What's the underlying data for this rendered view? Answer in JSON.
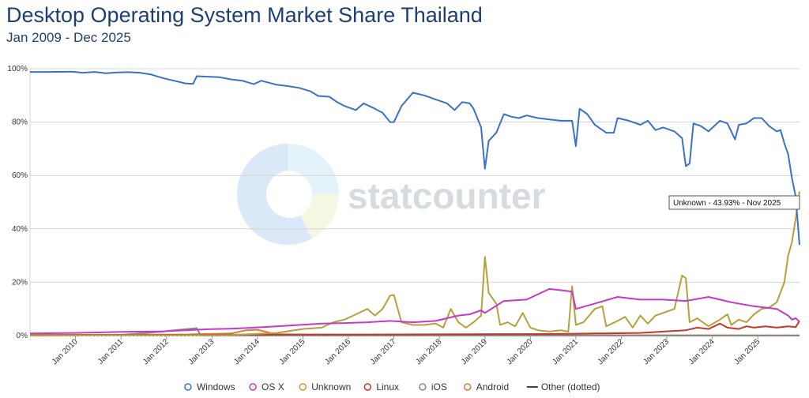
{
  "chart_data": {
    "type": "line",
    "title": "Desktop Operating System Market Share Thailand",
    "subtitle": "Jan 2009 - Dec 2025",
    "ylim": [
      0,
      100
    ],
    "xlim": [
      "2009-01",
      "2025-12"
    ],
    "grid": true,
    "legend_position": "bottom",
    "y_ticks": [
      "0%",
      "20%",
      "40%",
      "60%",
      "80%",
      "100%"
    ],
    "x_ticks": [
      "Jan 2010",
      "Jan 2011",
      "Jan 2012",
      "Jan 2013",
      "Jan 2014",
      "Jan 2015",
      "Jan 2016",
      "Jan 2017",
      "Jan 2018",
      "Jan 2019",
      "Jan 2020",
      "Jan 2021",
      "Jan 2022",
      "Jan 2023",
      "Jan 2024",
      "Jan 2025"
    ],
    "watermark": "statcounter",
    "tooltip": "Unknown - 43.93% - Nov 2025",
    "series": [
      {
        "name": "Windows",
        "color": "#3a72c7",
        "dotted": false,
        "points": [
          [
            "2009-01",
            98.8
          ],
          [
            "2009-06",
            98.8
          ],
          [
            "2009-12",
            98.9
          ],
          [
            "2010-03",
            98.5
          ],
          [
            "2010-06",
            98.8
          ],
          [
            "2010-09",
            98.3
          ],
          [
            "2010-12",
            98.6
          ],
          [
            "2011-03",
            98.7
          ],
          [
            "2011-06",
            98.5
          ],
          [
            "2011-09",
            97.8
          ],
          [
            "2011-12",
            96.5
          ],
          [
            "2012-03",
            95.5
          ],
          [
            "2012-06",
            94.5
          ],
          [
            "2012-08",
            94.3
          ],
          [
            "2012-09",
            97.2
          ],
          [
            "2012-12",
            97.0
          ],
          [
            "2013-03",
            96.8
          ],
          [
            "2013-06",
            96.0
          ],
          [
            "2013-09",
            95.5
          ],
          [
            "2013-12",
            94.2
          ],
          [
            "2014-02",
            95.5
          ],
          [
            "2014-06",
            94.0
          ],
          [
            "2014-09",
            93.5
          ],
          [
            "2014-12",
            92.8
          ],
          [
            "2015-03",
            91.5
          ],
          [
            "2015-05",
            89.8
          ],
          [
            "2015-08",
            89.5
          ],
          [
            "2015-10",
            87.5
          ],
          [
            "2015-12",
            86.0
          ],
          [
            "2016-03",
            84.5
          ],
          [
            "2016-05",
            87.0
          ],
          [
            "2016-08",
            85.0
          ],
          [
            "2016-10",
            83.5
          ],
          [
            "2016-12",
            80.0
          ],
          [
            "2017-01",
            80.0
          ],
          [
            "2017-03",
            86.0
          ],
          [
            "2017-06",
            91.0
          ],
          [
            "2017-09",
            90.0
          ],
          [
            "2017-12",
            88.5
          ],
          [
            "2018-03",
            87.0
          ],
          [
            "2018-05",
            84.5
          ],
          [
            "2018-07",
            87.5
          ],
          [
            "2018-09",
            87.0
          ],
          [
            "2018-10",
            85.0
          ],
          [
            "2018-12",
            78.0
          ],
          [
            "2019-01",
            62.5
          ],
          [
            "2019-02",
            73.0
          ],
          [
            "2019-04",
            76.0
          ],
          [
            "2019-06",
            83.0
          ],
          [
            "2019-08",
            82.0
          ],
          [
            "2019-10",
            81.5
          ],
          [
            "2019-12",
            82.5
          ],
          [
            "2020-03",
            81.5
          ],
          [
            "2020-06",
            81.0
          ],
          [
            "2020-09",
            80.5
          ],
          [
            "2020-11",
            80.5
          ],
          [
            "2020-12",
            80.5
          ],
          [
            "2021-01",
            71.0
          ],
          [
            "2021-02",
            85.0
          ],
          [
            "2021-04",
            83.0
          ],
          [
            "2021-06",
            79.0
          ],
          [
            "2021-09",
            76.0
          ],
          [
            "2021-11",
            76.0
          ],
          [
            "2021-12",
            81.5
          ],
          [
            "2022-03",
            80.5
          ],
          [
            "2022-06",
            79.0
          ],
          [
            "2022-08",
            80.5
          ],
          [
            "2022-10",
            77.0
          ],
          [
            "2022-12",
            78.0
          ],
          [
            "2023-03",
            76.5
          ],
          [
            "2023-05",
            74.0
          ],
          [
            "2023-06",
            63.5
          ],
          [
            "2023-07",
            64.5
          ],
          [
            "2023-08",
            79.5
          ],
          [
            "2023-10",
            78.5
          ],
          [
            "2023-12",
            76.5
          ],
          [
            "2024-03",
            80.5
          ],
          [
            "2024-05",
            79.5
          ],
          [
            "2024-07",
            73.5
          ],
          [
            "2024-08",
            79.0
          ],
          [
            "2024-10",
            79.5
          ],
          [
            "2024-12",
            81.5
          ],
          [
            "2025-02",
            81.5
          ],
          [
            "2025-04",
            78.5
          ],
          [
            "2025-06",
            76.5
          ],
          [
            "2025-07",
            77.0
          ],
          [
            "2025-08",
            72.0
          ],
          [
            "2025-09",
            68.0
          ],
          [
            "2025-10",
            59.0
          ],
          [
            "2025-11",
            52.0
          ],
          [
            "2025-12",
            34.0
          ]
        ]
      },
      {
        "name": "OS X",
        "color": "#c33ac8",
        "dotted": false,
        "points": [
          [
            "2009-01",
            0.8
          ],
          [
            "2010-01",
            1.0
          ],
          [
            "2011-01",
            1.4
          ],
          [
            "2011-12",
            1.6
          ],
          [
            "2012-06",
            2.0
          ],
          [
            "2012-12",
            2.4
          ],
          [
            "2013-06",
            2.6
          ],
          [
            "2013-12",
            3.0
          ],
          [
            "2014-06",
            3.5
          ],
          [
            "2014-12",
            4.0
          ],
          [
            "2015-06",
            4.5
          ],
          [
            "2015-12",
            4.7
          ],
          [
            "2016-06",
            5.0
          ],
          [
            "2016-12",
            5.5
          ],
          [
            "2017-06",
            5.0
          ],
          [
            "2017-12",
            5.5
          ],
          [
            "2018-06",
            7.5
          ],
          [
            "2018-09",
            8.0
          ],
          [
            "2018-12",
            9.5
          ],
          [
            "2019-01",
            8.5
          ],
          [
            "2019-06",
            13.0
          ],
          [
            "2019-12",
            13.5
          ],
          [
            "2020-03",
            15.5
          ],
          [
            "2020-06",
            17.5
          ],
          [
            "2020-09",
            17.0
          ],
          [
            "2020-12",
            16.5
          ],
          [
            "2021-01",
            10.0
          ],
          [
            "2021-06",
            12.0
          ],
          [
            "2021-12",
            14.5
          ],
          [
            "2022-06",
            13.5
          ],
          [
            "2022-12",
            13.5
          ],
          [
            "2023-06",
            13.0
          ],
          [
            "2023-12",
            14.5
          ],
          [
            "2024-03",
            13.5
          ],
          [
            "2024-06",
            12.5
          ],
          [
            "2024-12",
            11.0
          ],
          [
            "2025-06",
            10.0
          ],
          [
            "2025-09",
            7.5
          ],
          [
            "2025-10",
            6.0
          ],
          [
            "2025-11",
            6.5
          ],
          [
            "2025-12",
            5.2
          ]
        ]
      },
      {
        "name": "Unknown",
        "color": "#b79f3d",
        "dotted": false,
        "points": [
          [
            "2009-01",
            0.1
          ],
          [
            "2013-06",
            0.2
          ],
          [
            "2014-06",
            1.0
          ],
          [
            "2015-01",
            2.5
          ],
          [
            "2015-06",
            3.0
          ],
          [
            "2015-09",
            5.0
          ],
          [
            "2015-12",
            6.0
          ],
          [
            "2016-03",
            8.0
          ],
          [
            "2016-06",
            10.0
          ],
          [
            "2016-08",
            7.5
          ],
          [
            "2016-10",
            10.0
          ],
          [
            "2016-12",
            15.0
          ],
          [
            "2017-01",
            15.2
          ],
          [
            "2017-03",
            5.0
          ],
          [
            "2017-06",
            4.0
          ],
          [
            "2017-09",
            4.0
          ],
          [
            "2017-12",
            4.5
          ],
          [
            "2018-02",
            3.0
          ],
          [
            "2018-04",
            10.0
          ],
          [
            "2018-06",
            5.0
          ],
          [
            "2018-08",
            3.0
          ],
          [
            "2018-10",
            5.0
          ],
          [
            "2018-12",
            7.5
          ],
          [
            "2019-01",
            29.5
          ],
          [
            "2019-02",
            16.0
          ],
          [
            "2019-04",
            12.0
          ],
          [
            "2019-05",
            4.0
          ],
          [
            "2019-07",
            5.0
          ],
          [
            "2019-09",
            3.5
          ],
          [
            "2019-11",
            8.5
          ],
          [
            "2020-01",
            3.0
          ],
          [
            "2020-03",
            2.0
          ],
          [
            "2020-06",
            1.5
          ],
          [
            "2020-09",
            2.0
          ],
          [
            "2020-11",
            1.5
          ],
          [
            "2020-12",
            18.5
          ],
          [
            "2021-01",
            4.0
          ],
          [
            "2021-03",
            5.0
          ],
          [
            "2021-06",
            10.0
          ],
          [
            "2021-08",
            11.0
          ],
          [
            "2021-09",
            3.5
          ],
          [
            "2021-12",
            5.5
          ],
          [
            "2022-02",
            7.0
          ],
          [
            "2022-04",
            3.0
          ],
          [
            "2022-06",
            7.5
          ],
          [
            "2022-08",
            4.5
          ],
          [
            "2022-10",
            7.5
          ],
          [
            "2022-12",
            8.5
          ],
          [
            "2023-03",
            10.0
          ],
          [
            "2023-05",
            22.5
          ],
          [
            "2023-06",
            21.5
          ],
          [
            "2023-07",
            5.0
          ],
          [
            "2023-09",
            6.5
          ],
          [
            "2023-11",
            4.5
          ],
          [
            "2023-12",
            3.5
          ],
          [
            "2024-03",
            6.0
          ],
          [
            "2024-05",
            8.0
          ],
          [
            "2024-06",
            4.0
          ],
          [
            "2024-08",
            6.0
          ],
          [
            "2024-10",
            5.0
          ],
          [
            "2024-12",
            8.0
          ],
          [
            "2025-02",
            10.0
          ],
          [
            "2025-04",
            10.5
          ],
          [
            "2025-06",
            12.5
          ],
          [
            "2025-08",
            20.0
          ],
          [
            "2025-09",
            30.0
          ],
          [
            "2025-10",
            35.0
          ],
          [
            "2025-11",
            43.93
          ],
          [
            "2025-12",
            54.0
          ]
        ]
      },
      {
        "name": "Linux",
        "color": "#c0392b",
        "dotted": false,
        "points": [
          [
            "2009-01",
            0.2
          ],
          [
            "2012-06",
            0.3
          ],
          [
            "2014-06",
            0.4
          ],
          [
            "2016-06",
            0.4
          ],
          [
            "2018-06",
            0.5
          ],
          [
            "2020-06",
            0.6
          ],
          [
            "2021-06",
            0.8
          ],
          [
            "2022-06",
            1.0
          ],
          [
            "2022-12",
            1.5
          ],
          [
            "2023-06",
            2.0
          ],
          [
            "2023-09",
            3.0
          ],
          [
            "2023-12",
            2.5
          ],
          [
            "2024-03",
            4.5
          ],
          [
            "2024-05",
            3.0
          ],
          [
            "2024-08",
            2.5
          ],
          [
            "2024-10",
            3.5
          ],
          [
            "2024-12",
            3.0
          ],
          [
            "2025-03",
            3.5
          ],
          [
            "2025-06",
            3.0
          ],
          [
            "2025-09",
            3.5
          ],
          [
            "2025-11",
            3.2
          ],
          [
            "2025-12",
            5.5
          ]
        ]
      },
      {
        "name": "iOS",
        "color": "#888888",
        "dotted": false,
        "points": [
          [
            "2009-01",
            0.0
          ],
          [
            "2011-01",
            0.3
          ],
          [
            "2011-06",
            0.8
          ],
          [
            "2011-12",
            1.5
          ],
          [
            "2012-03",
            2.0
          ],
          [
            "2012-06",
            2.4
          ],
          [
            "2012-09",
            2.8
          ],
          [
            "2012-10",
            0.1
          ],
          [
            "2025-12",
            0.0
          ]
        ]
      },
      {
        "name": "Android",
        "color": "#e07b39",
        "dotted": false,
        "points": [
          [
            "2009-01",
            0.2
          ],
          [
            "2010-06",
            0.3
          ],
          [
            "2012-06",
            0.4
          ],
          [
            "2013-06",
            0.8
          ],
          [
            "2013-10",
            2.0
          ],
          [
            "2014-01",
            2.2
          ],
          [
            "2014-06",
            0.5
          ],
          [
            "2015-06",
            0.3
          ],
          [
            "2018-06",
            0.2
          ],
          [
            "2025-12",
            0.1
          ]
        ]
      },
      {
        "name": "Other (dotted)",
        "color": "#444444",
        "dotted": true,
        "points": [
          [
            "2009-01",
            0.1
          ],
          [
            "2025-12",
            0.1
          ]
        ]
      }
    ]
  }
}
